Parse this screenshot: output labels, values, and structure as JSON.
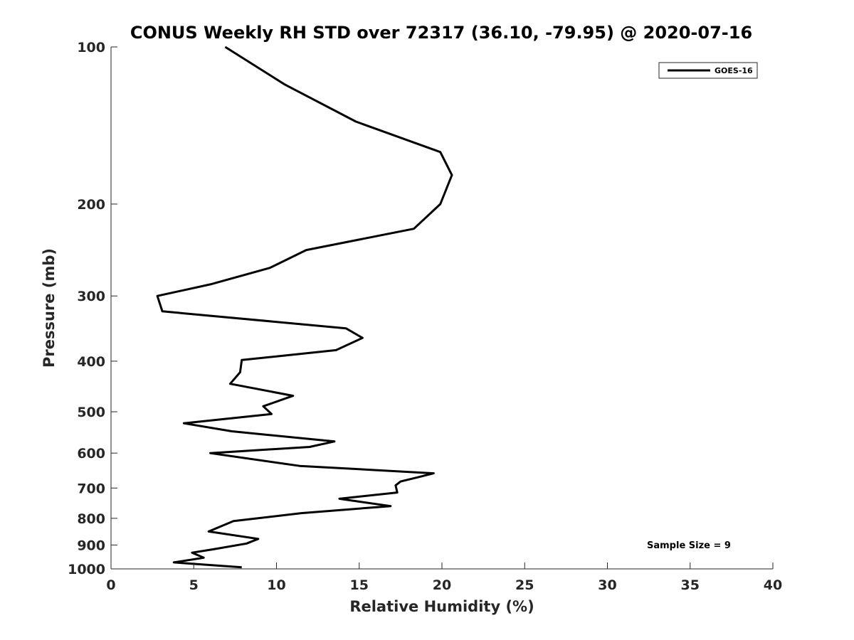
{
  "chart_data": {
    "type": "line",
    "title": "CONUS Weekly RH STD over 72317 (36.10, -79.95) @ 2020-07-16",
    "xlabel": "Relative Humidity (%)",
    "ylabel": "Pressure (mb)",
    "xlim": [
      0,
      40
    ],
    "ylim": [
      100,
      1000
    ],
    "yscale": "log",
    "y_reversed": true,
    "grid": false,
    "legend_position": "top-right",
    "xticks": [
      0,
      5,
      10,
      15,
      20,
      25,
      30,
      35,
      40
    ],
    "yticks": [
      100,
      200,
      300,
      400,
      500,
      600,
      700,
      800,
      900,
      1000
    ],
    "series": [
      {
        "name": "GOES-16",
        "color": "#000000",
        "x": [
          6.9,
          10.5,
          14.8,
          19.9,
          20.6,
          19.9,
          18.3,
          11.8,
          9.6,
          6.0,
          2.8,
          3.1,
          14.2,
          15.2,
          13.6,
          7.9,
          7.8,
          7.2,
          11.0,
          9.2,
          9.7,
          4.4,
          7.3,
          13.5,
          12.0,
          6.0,
          11.4,
          19.5,
          18.5,
          17.5,
          17.2,
          17.3,
          13.8,
          16.9,
          11.5,
          7.4,
          5.9,
          8.9,
          8.2,
          6.2,
          4.9,
          5.6,
          3.8,
          7.9
        ],
        "y": [
          100,
          118,
          139,
          159,
          176,
          200,
          223,
          245,
          265,
          285,
          300,
          321,
          346,
          361,
          381,
          398,
          420,
          442,
          466,
          488,
          505,
          526,
          545,
          570,
          584,
          600,
          635,
          656,
          668,
          680,
          692,
          714,
          734,
          758,
          782,
          810,
          848,
          876,
          894,
          917,
          931,
          952,
          972,
          993
        ]
      }
    ],
    "annotation": "Sample Size = 9"
  }
}
